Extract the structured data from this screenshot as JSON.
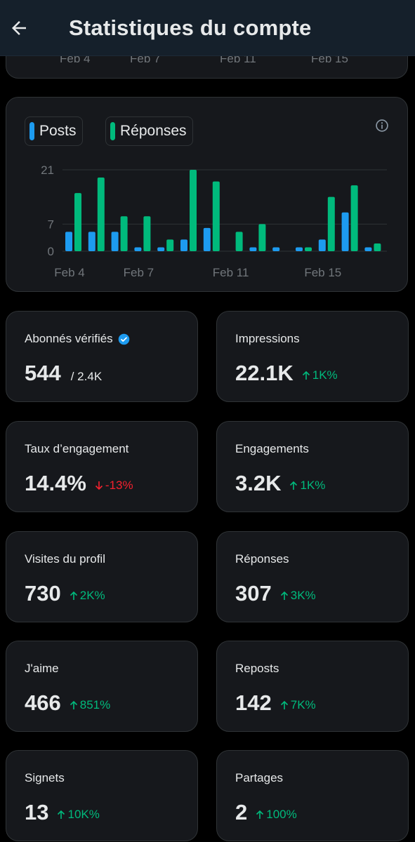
{
  "header": {
    "title": "Statistiques du compte"
  },
  "previous_chart": {
    "x_labels": [
      "Feb 4",
      "Feb 7",
      "Feb 11",
      "Feb 15"
    ]
  },
  "legend": {
    "posts": "Posts",
    "replies": "Réponses"
  },
  "colors": {
    "posts": "#1d9bf0",
    "replies": "#00ba7c",
    "up": "#00ba7c",
    "down": "#f4212e",
    "verified": "#1d9bf0"
  },
  "chart_data": {
    "type": "bar",
    "categories": [
      "Feb 4",
      "Feb 5",
      "Feb 6",
      "Feb 7",
      "Feb 8",
      "Feb 9",
      "Feb 10",
      "Feb 11",
      "Feb 12",
      "Feb 13",
      "Feb 14",
      "Feb 15",
      "Feb 16",
      "Feb 17"
    ],
    "series": [
      {
        "name": "Posts",
        "values": [
          5,
          5,
          5,
          1,
          1,
          3,
          6,
          0,
          1,
          1,
          1,
          3,
          10,
          1
        ]
      },
      {
        "name": "Réponses",
        "values": [
          15,
          19,
          9,
          9,
          3,
          21,
          18,
          5,
          7,
          0,
          1,
          14,
          17,
          2
        ]
      }
    ],
    "yticks": [
      "0",
      "7",
      "21"
    ],
    "ylim": [
      0,
      21
    ],
    "xtick_labels": [
      {
        "index": 0,
        "label": "Feb 4"
      },
      {
        "index": 3,
        "label": "Feb 7"
      },
      {
        "index": 7,
        "label": "Feb 11"
      },
      {
        "index": 11,
        "label": "Feb 15"
      }
    ],
    "grid": true,
    "legend": "top-left"
  },
  "stats": [
    {
      "label": "Abonnés vérifiés",
      "value": "544",
      "sub": "/ 2.4K",
      "verified": true
    },
    {
      "label": "Impressions",
      "value": "22.1K",
      "change": "1K%",
      "direction": "up"
    },
    {
      "label": "Taux d’engagement",
      "value": "14.4%",
      "change": "-13%",
      "direction": "down"
    },
    {
      "label": "Engagements",
      "value": "3.2K",
      "change": "1K%",
      "direction": "up"
    },
    {
      "label": "Visites du profil",
      "value": "730",
      "change": "2K%",
      "direction": "up"
    },
    {
      "label": "Réponses",
      "value": "307",
      "change": "3K%",
      "direction": "up"
    },
    {
      "label": "J'aime",
      "value": "466",
      "change": "851%",
      "direction": "up"
    },
    {
      "label": "Reposts",
      "value": "142",
      "change": "7K%",
      "direction": "up"
    },
    {
      "label": "Signets",
      "value": "13",
      "change": "10K%",
      "direction": "up"
    },
    {
      "label": "Partages",
      "value": "2",
      "change": "100%",
      "direction": "up"
    }
  ]
}
